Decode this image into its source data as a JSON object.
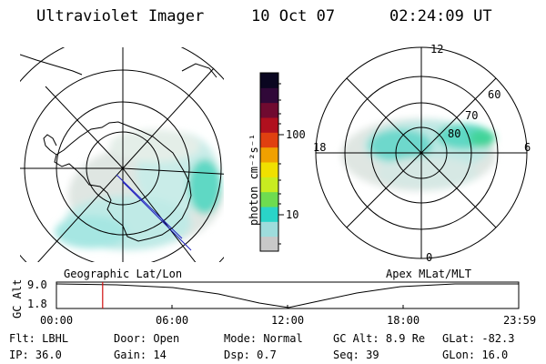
{
  "header": {
    "title": "Ultraviolet Imager",
    "date": "10 Oct 07",
    "time": "02:24:09 UT"
  },
  "left_map": {
    "label": "Geographic Lat/Lon"
  },
  "right_map": {
    "label": "Apex MLat/MLT",
    "mlt_labels": {
      "top": "12",
      "left": "18",
      "right": "6",
      "bottom": "0"
    },
    "lat_labels": [
      "60",
      "70",
      "80"
    ]
  },
  "colorbar": {
    "unit": "photon cm⁻²s⁻¹",
    "ticks": [
      "100",
      "10"
    ],
    "colors": [
      "#c8c8c8",
      "#9edcdc",
      "#2ad4c8",
      "#6edc50",
      "#c8ec20",
      "#f0e000",
      "#f0a000",
      "#e04010",
      "#b0101e",
      "#700a30",
      "#300838",
      "#0a0620"
    ]
  },
  "timeline": {
    "ylabel": "GC Alt",
    "y_ticks": [
      "9.0",
      "1.8"
    ],
    "x_ticks": [
      "00:00",
      "06:00",
      "12:00",
      "18:00",
      "23:59"
    ],
    "marker_time_hours": 2.4
  },
  "info": {
    "row1": [
      {
        "label": "Flt:",
        "value": "LBHL"
      },
      {
        "label": "Door:",
        "value": "Open"
      },
      {
        "label": "Mode:",
        "value": "Normal"
      },
      {
        "label": "GC Alt:",
        "value": "8.9 Re"
      },
      {
        "label": "GLat:",
        "value": "-82.3"
      }
    ],
    "row2": [
      {
        "label": "IP:",
        "value": "36.0"
      },
      {
        "label": "Gain:",
        "value": "14"
      },
      {
        "label": "Dsp:",
        "value": "0.7"
      },
      {
        "label": "Seq:",
        "value": "39"
      },
      {
        "label": "GLon:",
        "value": "16.0"
      }
    ]
  }
}
